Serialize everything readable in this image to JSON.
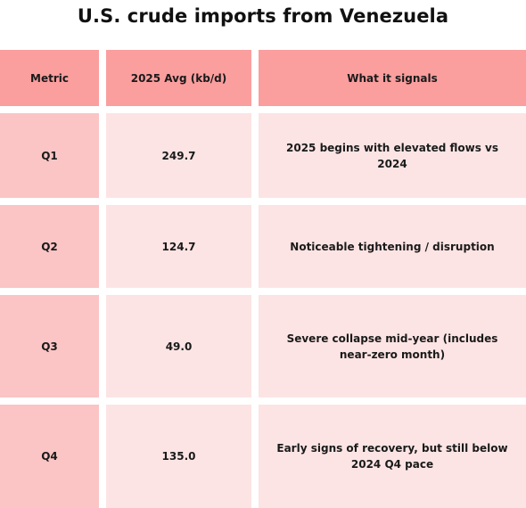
{
  "chart_data": {
    "type": "table",
    "title": "U.S. crude imports from Venezuela",
    "columns": [
      "Metric",
      "2025 Avg (kb/d)",
      "What it signals"
    ],
    "rows": [
      {
        "metric": "Q1",
        "avg": "249.7",
        "signal": "2025 begins with elevated flows vs 2024"
      },
      {
        "metric": "Q2",
        "avg": "124.7",
        "signal": "Noticeable tightening / disruption"
      },
      {
        "metric": "Q3",
        "avg": "49.0",
        "signal": "Severe collapse mid-year (includes near-zero month)"
      },
      {
        "metric": "Q4",
        "avg": "135.0",
        "signal": "Early signs of recovery, but still below 2024 Q4 pace"
      }
    ],
    "colors": {
      "header": "#fb9e9e",
      "first_column": "#fbc5c5",
      "body": "#fde4e4"
    }
  }
}
